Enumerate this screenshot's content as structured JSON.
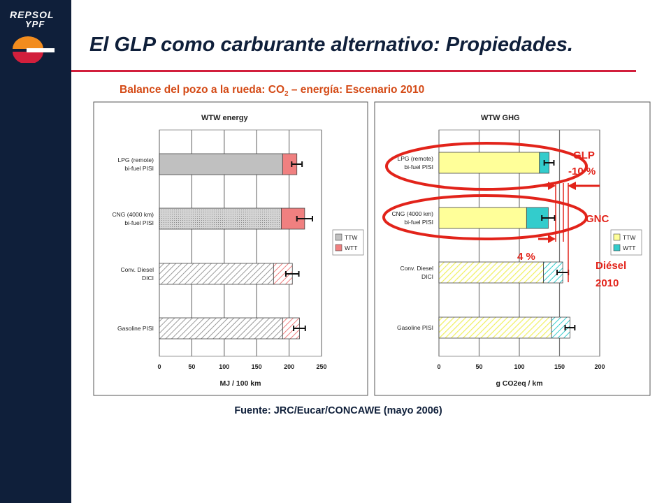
{
  "header": {
    "logo_line1": "REPSOL",
    "logo_line2": "YPF",
    "title": "El GLP como carburante alternativo: Propiedades.",
    "subtitle_prefix": "Balance del pozo a la rueda: CO",
    "subtitle_sub": "2",
    "subtitle_suffix": " – energía: Escenario 2010",
    "source": "Fuente: JRC/Eucar/CONCAWE (mayo 2006)"
  },
  "annotations": {
    "glp_label": "GLP",
    "glp_pct": "-10 %",
    "gnc_label": "GNC",
    "pct4": "4 %",
    "diesel_line1": "Diésel",
    "diesel_line2": "2010"
  },
  "colors": {
    "sidebar": "#0f1f3a",
    "accent_red": "#e2231a",
    "title_rule": "#d21f3c",
    "subtitle": "#d44a16",
    "ttw_energy": "#c0c0c0",
    "wtt_energy": "#f08080",
    "ttw_ghg": "#ffff99",
    "wtt_ghg": "#33cccc"
  },
  "chart_data": [
    {
      "type": "bar",
      "orientation": "horizontal",
      "stacked": true,
      "title": "WTW energy",
      "xlabel": "MJ / 100 km",
      "xlim": [
        0,
        250
      ],
      "xticks": [
        0,
        50,
        100,
        150,
        200,
        250
      ],
      "grid": true,
      "legend_position": "right",
      "categories": [
        "LPG (remote)\nbi-fuel PISI",
        "CNG (4000 km)\nbi-fuel PISI",
        "Conv. Diesel\nDICI",
        "Gasoline PISI"
      ],
      "series": [
        {
          "name": "TTW",
          "values": [
            190,
            188,
            176,
            190
          ],
          "pattern": [
            "solid",
            "dotted",
            "hatch",
            "hatch"
          ]
        },
        {
          "name": "WTT",
          "values": [
            22,
            36,
            29,
            26
          ],
          "pattern": [
            "solid",
            "solid",
            "hatch",
            "hatch"
          ]
        }
      ],
      "error_bars": [
        8,
        12,
        10,
        9
      ]
    },
    {
      "type": "bar",
      "orientation": "horizontal",
      "stacked": true,
      "title": "WTW GHG",
      "xlabel": "g CO2eq / km",
      "xlim": [
        0,
        200
      ],
      "xticks": [
        0,
        50,
        100,
        150,
        200
      ],
      "grid": true,
      "legend_position": "right",
      "categories": [
        "LPG (remote)\nbi-fuel PISI",
        "CNG (4000 km)\nbi-fuel PISI",
        "Conv. Diesel\nDICI",
        "Gasoline PISI"
      ],
      "series": [
        {
          "name": "TTW",
          "values": [
            125,
            109,
            130,
            140
          ],
          "pattern": [
            "solid",
            "solid",
            "hatch",
            "hatch"
          ]
        },
        {
          "name": "WTT",
          "values": [
            12,
            27,
            24,
            23
          ],
          "pattern": [
            "solid",
            "solid",
            "hatch",
            "hatch"
          ]
        }
      ],
      "error_bars": [
        6,
        8,
        7,
        6
      ]
    }
  ]
}
